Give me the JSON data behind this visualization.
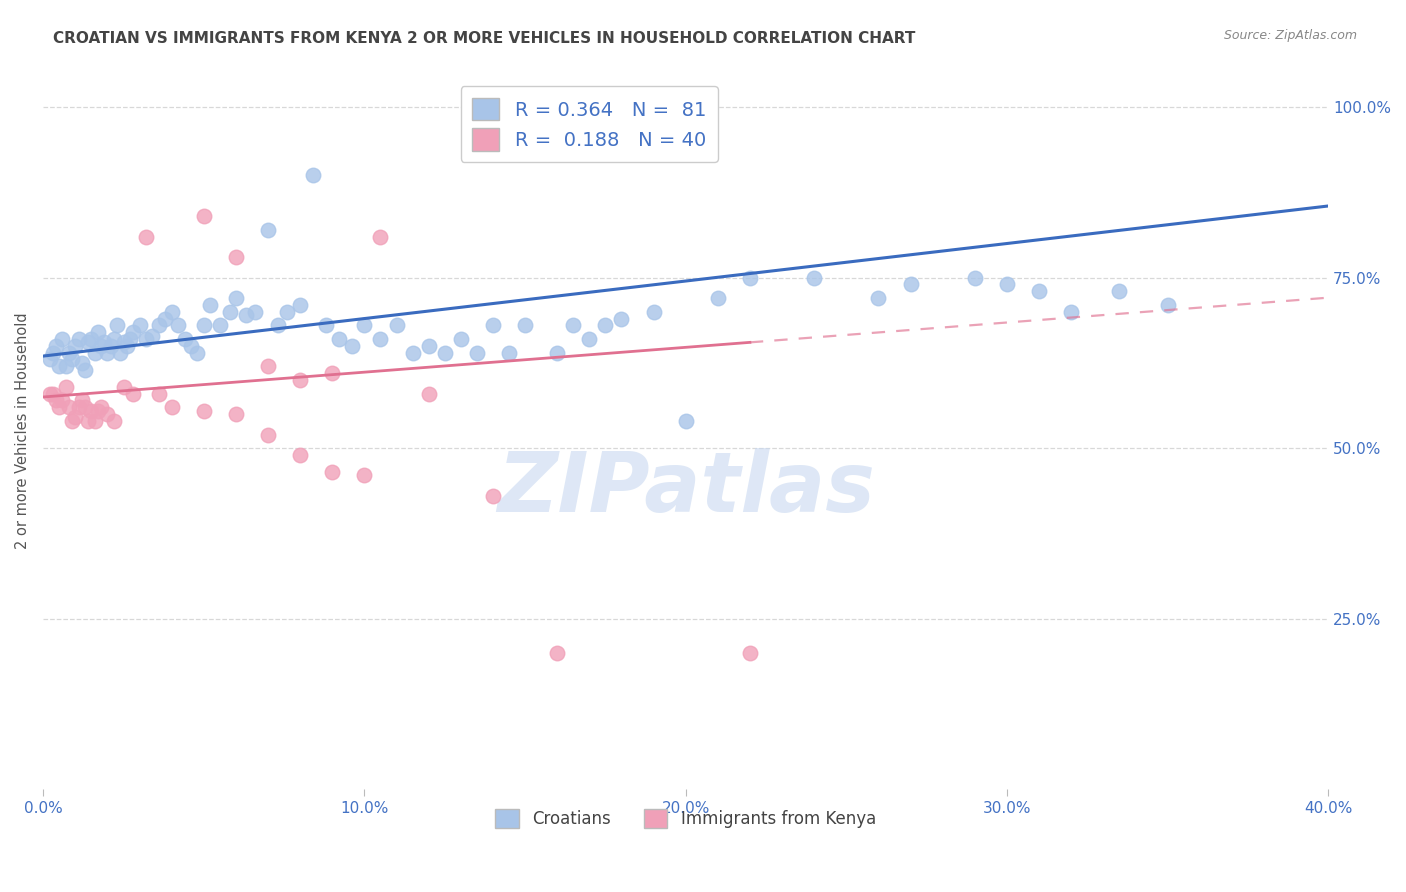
{
  "title": "CROATIAN VS IMMIGRANTS FROM KENYA 2 OR MORE VEHICLES IN HOUSEHOLD CORRELATION CHART",
  "source": "Source: ZipAtlas.com",
  "ylabel": "2 or more Vehicles in Household",
  "x_min": 0.0,
  "x_max": 0.4,
  "y_min": 0.0,
  "y_max": 1.05,
  "x_tick_labels": [
    "0.0%",
    "10.0%",
    "20.0%",
    "30.0%",
    "40.0%"
  ],
  "x_tick_vals": [
    0.0,
    0.1,
    0.2,
    0.3,
    0.4
  ],
  "y_tick_labels": [
    "25.0%",
    "50.0%",
    "75.0%",
    "100.0%"
  ],
  "y_tick_vals": [
    0.25,
    0.5,
    0.75,
    1.0
  ],
  "blue_R": 0.364,
  "blue_N": 81,
  "pink_R": 0.188,
  "pink_N": 40,
  "blue_line_color": "#3a6bbf",
  "pink_line_color": "#e07090",
  "dot_blue": "#a8c4e8",
  "dot_pink": "#f0a0b8",
  "background_color": "#ffffff",
  "grid_color": "#d8d8d8",
  "title_color": "#444444",
  "axis_label_color": "#4472c4",
  "watermark": "ZIPatlas",
  "watermark_color": "#c8d8f0",
  "croatians_x": [
    0.002,
    0.003,
    0.004,
    0.005,
    0.006,
    0.007,
    0.008,
    0.009,
    0.01,
    0.011,
    0.012,
    0.013,
    0.014,
    0.015,
    0.016,
    0.017,
    0.018,
    0.019,
    0.02,
    0.021,
    0.022,
    0.023,
    0.024,
    0.025,
    0.026,
    0.027,
    0.028,
    0.03,
    0.032,
    0.034,
    0.036,
    0.038,
    0.04,
    0.042,
    0.044,
    0.046,
    0.048,
    0.05,
    0.052,
    0.055,
    0.058,
    0.06,
    0.063,
    0.066,
    0.07,
    0.073,
    0.076,
    0.08,
    0.084,
    0.088,
    0.092,
    0.096,
    0.1,
    0.105,
    0.11,
    0.115,
    0.12,
    0.125,
    0.13,
    0.135,
    0.14,
    0.145,
    0.15,
    0.16,
    0.165,
    0.17,
    0.175,
    0.18,
    0.19,
    0.2,
    0.21,
    0.22,
    0.24,
    0.26,
    0.27,
    0.29,
    0.3,
    0.31,
    0.32,
    0.335,
    0.35
  ],
  "croatians_y": [
    0.63,
    0.64,
    0.65,
    0.62,
    0.66,
    0.62,
    0.64,
    0.63,
    0.65,
    0.66,
    0.625,
    0.615,
    0.655,
    0.66,
    0.64,
    0.67,
    0.65,
    0.655,
    0.64,
    0.65,
    0.66,
    0.68,
    0.64,
    0.655,
    0.65,
    0.66,
    0.67,
    0.68,
    0.66,
    0.665,
    0.68,
    0.69,
    0.7,
    0.68,
    0.66,
    0.65,
    0.64,
    0.68,
    0.71,
    0.68,
    0.7,
    0.72,
    0.695,
    0.7,
    0.82,
    0.68,
    0.7,
    0.71,
    0.9,
    0.68,
    0.66,
    0.65,
    0.68,
    0.66,
    0.68,
    0.64,
    0.65,
    0.64,
    0.66,
    0.64,
    0.68,
    0.64,
    0.68,
    0.64,
    0.68,
    0.66,
    0.68,
    0.69,
    0.7,
    0.54,
    0.72,
    0.75,
    0.75,
    0.72,
    0.74,
    0.75,
    0.74,
    0.73,
    0.7,
    0.73,
    0.71
  ],
  "kenya_x": [
    0.002,
    0.003,
    0.004,
    0.005,
    0.006,
    0.007,
    0.008,
    0.009,
    0.01,
    0.011,
    0.012,
    0.013,
    0.014,
    0.015,
    0.016,
    0.017,
    0.018,
    0.02,
    0.022,
    0.025,
    0.028,
    0.032,
    0.036,
    0.04,
    0.05,
    0.06,
    0.07,
    0.08,
    0.09,
    0.1,
    0.05,
    0.06,
    0.07,
    0.08,
    0.09,
    0.105,
    0.12,
    0.14,
    0.16,
    0.22
  ],
  "kenya_y": [
    0.58,
    0.58,
    0.57,
    0.56,
    0.57,
    0.59,
    0.56,
    0.54,
    0.545,
    0.56,
    0.57,
    0.56,
    0.54,
    0.555,
    0.54,
    0.555,
    0.56,
    0.55,
    0.54,
    0.59,
    0.58,
    0.81,
    0.58,
    0.56,
    0.555,
    0.55,
    0.52,
    0.49,
    0.465,
    0.46,
    0.84,
    0.78,
    0.62,
    0.6,
    0.61,
    0.81,
    0.58,
    0.43,
    0.2,
    0.2
  ]
}
